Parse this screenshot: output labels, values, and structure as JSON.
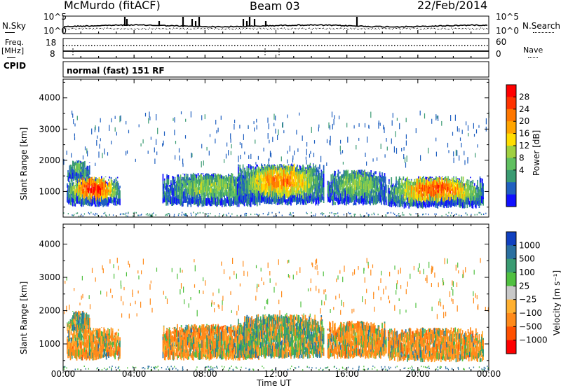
{
  "header": {
    "station": "McMurdo (fitACF)",
    "beam": "Beam 03",
    "date": "22/Feb/2014"
  },
  "side_labels": {
    "nsky": "N.Sky",
    "nsearch": "N.Search",
    "freq": "Freq.",
    "freq_unit": "[MHz]",
    "nave": "Nave",
    "cpid": "CPID"
  },
  "strip_ticks": {
    "noise_left": [
      "10^5",
      "10^0"
    ],
    "noise_right": [
      "10^5",
      "10^0"
    ],
    "freq_left": [
      "18",
      "8"
    ],
    "nave_right": [
      "60",
      "0"
    ]
  },
  "cpid_text": "normal (fast) 151 RF",
  "panels": {
    "power": {
      "ylabel": "Slant Range [km]",
      "cbar_label": "Power [dB]"
    },
    "velocity": {
      "ylabel": "Slant Range [km]",
      "cbar_label": "Velocity [m s⁻¹]"
    }
  },
  "xaxis": {
    "label": "Time UT"
  },
  "chart_data": [
    {
      "type": "heatmap",
      "name": "power",
      "x_ticks": [
        "00:00",
        "04:00",
        "08:00",
        "12:00",
        "16:00",
        "20:00",
        "00:00"
      ],
      "x_range_hours": [
        0,
        24
      ],
      "y_ticks": [
        1000,
        2000,
        3000,
        4000
      ],
      "ylim": [
        180,
        4600
      ],
      "colorbar": {
        "ticks": [
          "28",
          "24",
          "20",
          "16",
          "12",
          "8",
          "4"
        ],
        "colors": [
          "#ff0000",
          "#ff3300",
          "#ff7700",
          "#ffa500",
          "#ffdd00",
          "#a0d040",
          "#60c060",
          "#3a9b72",
          "#2060c0",
          "#1010ff"
        ]
      },
      "echo_regions": [
        {
          "t0": 0.2,
          "t1": 1.5,
          "r0": 1300,
          "r1": 2000,
          "level": 2
        },
        {
          "t0": 0.2,
          "t1": 3.2,
          "r0": 500,
          "r1": 1500,
          "level": 8
        },
        {
          "t0": 5.6,
          "t1": 11.0,
          "r0": 500,
          "r1": 1600,
          "level": 3
        },
        {
          "t0": 9.8,
          "t1": 14.7,
          "r0": 550,
          "r1": 1900,
          "level": 6
        },
        {
          "t0": 14.9,
          "t1": 18.2,
          "r0": 550,
          "r1": 1700,
          "level": 3
        },
        {
          "t0": 18.3,
          "t1": 23.7,
          "r0": 450,
          "r1": 1500,
          "level": 7
        }
      ]
    },
    {
      "type": "heatmap",
      "name": "velocity",
      "x_ticks": [
        "00:00",
        "04:00",
        "08:00",
        "12:00",
        "16:00",
        "20:00",
        "00:00"
      ],
      "x_range_hours": [
        0,
        24
      ],
      "y_ticks": [
        1000,
        2000,
        3000,
        4000
      ],
      "ylim": [
        180,
        4600
      ],
      "colorbar": {
        "ticks": [
          "1000",
          "500",
          "100",
          "25",
          "−25",
          "−100",
          "−500",
          "−1000"
        ],
        "colors": [
          "#1040c0",
          "#2a6fa0",
          "#3a9b72",
          "#50c040",
          "#c8c8c8",
          "#ffb030",
          "#ff8a1a",
          "#ff5000",
          "#ff0000"
        ]
      },
      "echo_regions": [
        {
          "t0": 0.2,
          "t1": 1.5,
          "r0": 1300,
          "r1": 2000,
          "v": "mixed"
        },
        {
          "t0": 0.2,
          "t1": 3.2,
          "r0": 500,
          "r1": 1500,
          "v": "-100"
        },
        {
          "t0": 5.6,
          "t1": 11.0,
          "r0": 500,
          "r1": 1600,
          "v": "-100"
        },
        {
          "t0": 9.8,
          "t1": 14.7,
          "r0": 550,
          "r1": 1900,
          "v": "mixed"
        },
        {
          "t0": 14.9,
          "t1": 18.2,
          "r0": 550,
          "r1": 1700,
          "v": "-100"
        },
        {
          "t0": 18.3,
          "t1": 23.7,
          "r0": 450,
          "r1": 1500,
          "v": "-100"
        }
      ]
    }
  ]
}
